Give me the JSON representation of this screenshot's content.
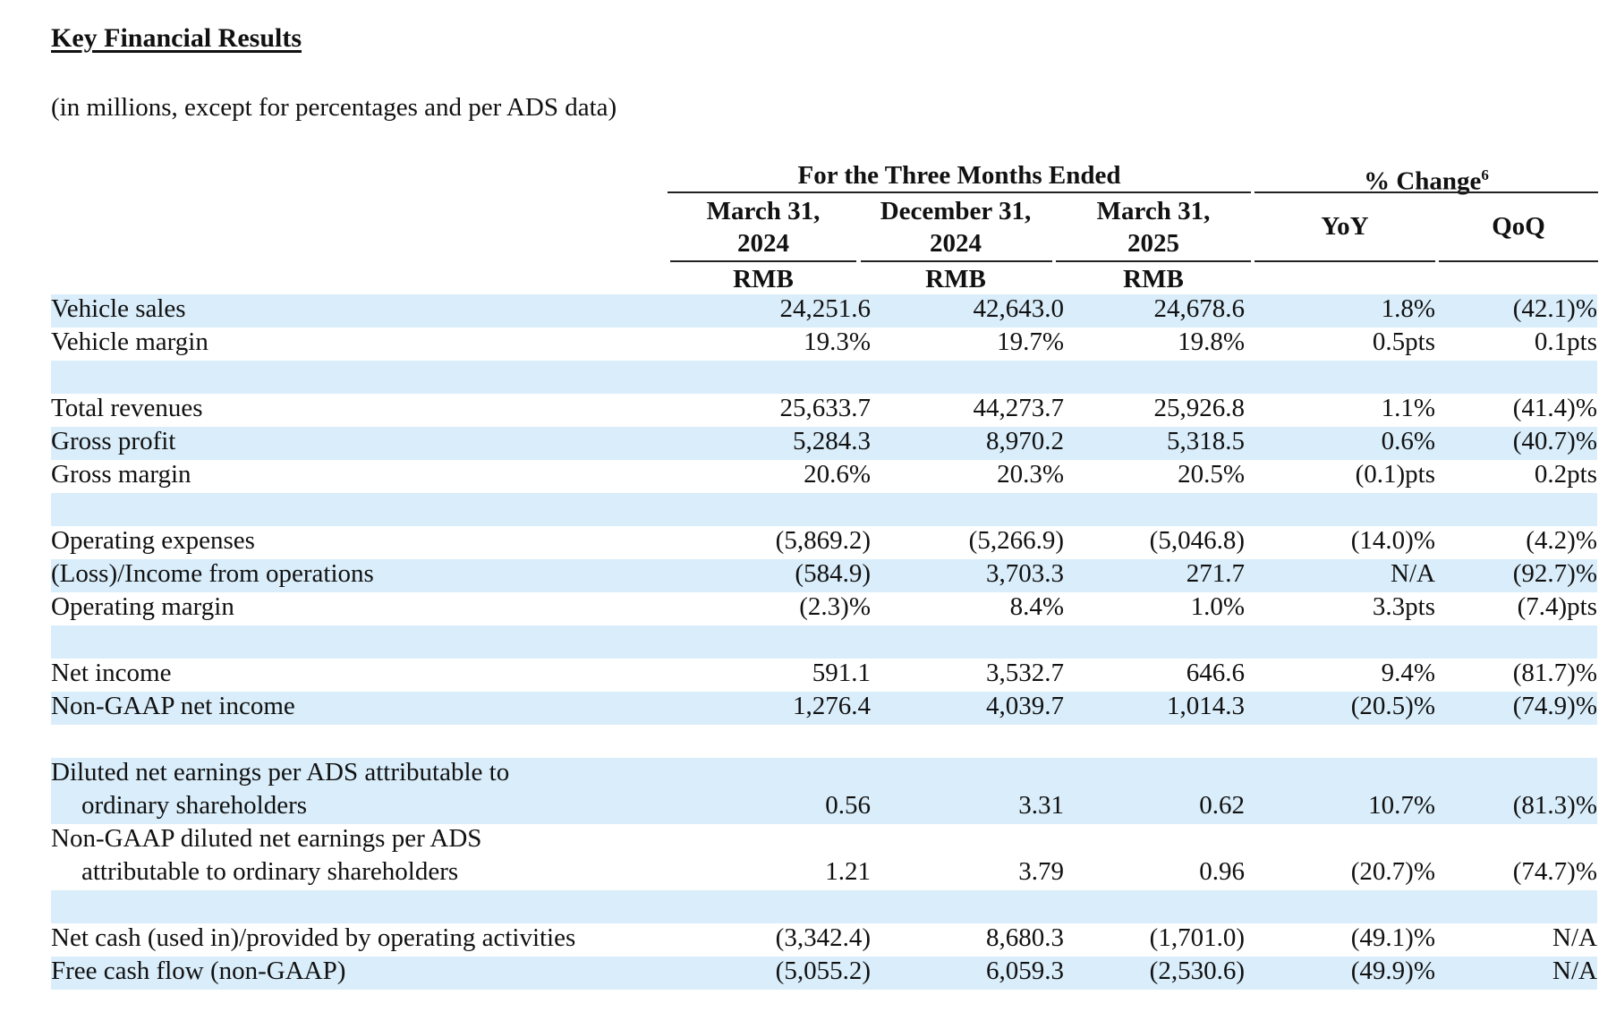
{
  "title": "Key Financial Results",
  "subtitle": "(in millions, except for percentages and per ADS data)",
  "header": {
    "group_period": "For the Three Months Ended",
    "group_change": "% Change",
    "group_change_note": "6",
    "columns": [
      {
        "line1": "March 31,",
        "line2": "2024",
        "unit": "RMB"
      },
      {
        "line1": "December 31,",
        "line2": "2024",
        "unit": "RMB"
      },
      {
        "line1": "March 31,",
        "line2": "2025",
        "unit": "RMB"
      }
    ],
    "yoy": "YoY",
    "qoq": "QoQ"
  },
  "rows": [
    {
      "label": "Vehicle sales",
      "values": [
        "24,251.6",
        "42,643.0",
        "24,678.6",
        "1.8%",
        "(42.1)%"
      ],
      "shaded": true
    },
    {
      "label": "Vehicle margin",
      "values": [
        "19.3%",
        "19.7%",
        "19.8%",
        "0.5pts",
        "0.1pts"
      ],
      "shaded": false
    },
    {
      "spacer": true,
      "shaded": true
    },
    {
      "label": "Total revenues",
      "values": [
        "25,633.7",
        "44,273.7",
        "25,926.8",
        "1.1%",
        "(41.4)%"
      ],
      "shaded": false
    },
    {
      "label": "Gross profit",
      "values": [
        "5,284.3",
        "8,970.2",
        "5,318.5",
        "0.6%",
        "(40.7)%"
      ],
      "shaded": true
    },
    {
      "label": "Gross margin",
      "values": [
        "20.6%",
        "20.3%",
        "20.5%",
        "(0.1)pts",
        "0.2pts"
      ],
      "shaded": false
    },
    {
      "spacer": true,
      "shaded": true
    },
    {
      "label": "Operating expenses",
      "values": [
        "(5,869.2)",
        "(5,266.9)",
        "(5,046.8)",
        "(14.0)%",
        "(4.2)%"
      ],
      "shaded": false
    },
    {
      "label": "(Loss)/Income from operations",
      "values": [
        "(584.9)",
        "3,703.3",
        "271.7",
        "N/A",
        "(92.7)%"
      ],
      "shaded": true
    },
    {
      "label": "Operating margin",
      "values": [
        "(2.3)%",
        "8.4%",
        "1.0%",
        "3.3pts",
        "(7.4)pts"
      ],
      "shaded": false
    },
    {
      "spacer": true,
      "shaded": true
    },
    {
      "label": "Net income",
      "values": [
        "591.1",
        "3,532.7",
        "646.6",
        "9.4%",
        "(81.7)%"
      ],
      "shaded": false
    },
    {
      "label": "Non-GAAP net income",
      "values": [
        "1,276.4",
        "4,039.7",
        "1,014.3",
        "(20.5)%",
        "(74.9)%"
      ],
      "shaded": true
    },
    {
      "spacer": true,
      "shaded": false
    },
    {
      "label": "Diluted net earnings per ADS attributable to",
      "label2": "ordinary shareholders",
      "values": [
        "0.56",
        "3.31",
        "0.62",
        "10.7%",
        "(81.3)%"
      ],
      "shaded": true
    },
    {
      "label": "Non-GAAP diluted net earnings per ADS",
      "label2": "attributable to ordinary shareholders",
      "values": [
        "1.21",
        "3.79",
        "0.96",
        "(20.7)%",
        "(74.7)%"
      ],
      "shaded": false
    },
    {
      "spacer": true,
      "shaded": true
    },
    {
      "label": "Net cash (used in)/provided by operating activities",
      "values": [
        "(3,342.4)",
        "8,680.3",
        "(1,701.0)",
        "(49.1)%",
        "N/A"
      ],
      "shaded": false
    },
    {
      "label": "Free cash flow (non-GAAP)",
      "values": [
        "(5,055.2)",
        "6,059.3",
        "(2,530.6)",
        "(49.9)%",
        "N/A"
      ],
      "shaded": true
    }
  ]
}
